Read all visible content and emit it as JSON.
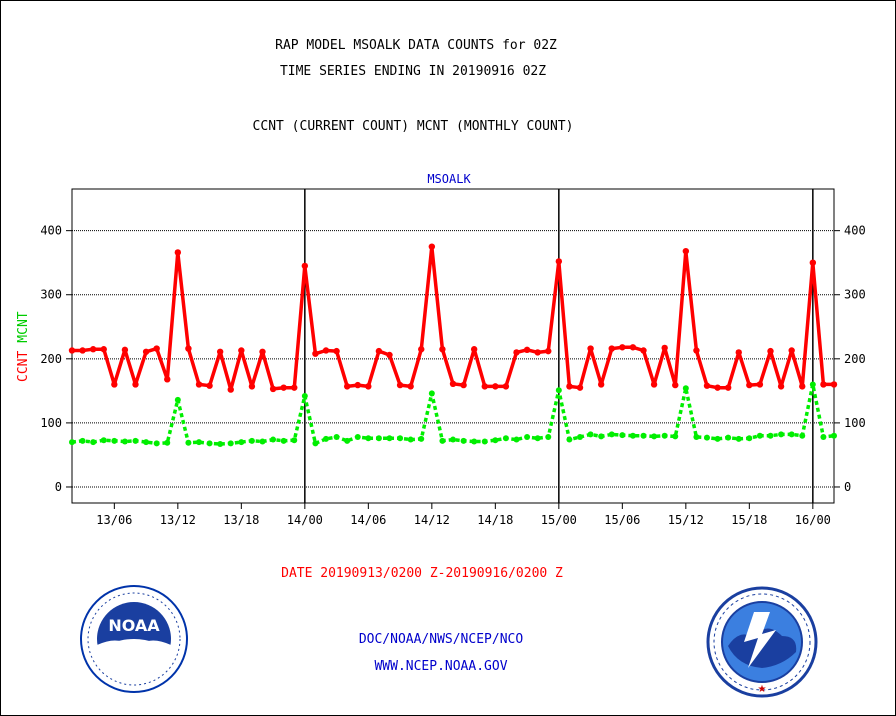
{
  "titles": {
    "line1": "RAP MODEL MSOALK DATA COUNTS for 02Z",
    "line2": "TIME SERIES ENDING IN 20190916 02Z",
    "line3": "CCNT (CURRENT COUNT) MCNT (MONTHLY COUNT)"
  },
  "panel_label": "MSOALK",
  "y_axis_labels": {
    "ccnt": "CCNT",
    "mcnt": "MCNT"
  },
  "date_range": "DATE 20190913/0200 Z-20190916/0200 Z",
  "credits": {
    "line1": "DOC/NOAA/NWS/NCEP/NCO",
    "line2": "WWW.NCEP.NOAA.GOV"
  },
  "colors": {
    "ccnt": "#ff0000",
    "mcnt": "#00ee00",
    "text_blue": "#0000cc"
  },
  "logos": {
    "left": "noaa-logo",
    "right": "nws-logo"
  },
  "chart_data": {
    "type": "line",
    "title": "MSOALK",
    "ylim": [
      -25,
      465
    ],
    "yticks": [
      0,
      100,
      200,
      300,
      400
    ],
    "grid": "horizontal dotted at y ticks",
    "x_labels": [
      "13/06",
      "13/12",
      "13/18",
      "14/00",
      "14/06",
      "14/12",
      "14/18",
      "15/00",
      "15/06",
      "15/12",
      "15/18",
      "16/00"
    ],
    "x_label_hours": [
      4,
      10,
      16,
      22,
      28,
      34,
      40,
      46,
      52,
      58,
      64,
      70
    ],
    "day_boundaries_hours": [
      22,
      46,
      70
    ],
    "x_hours": [
      0,
      1,
      2,
      3,
      4,
      5,
      6,
      7,
      8,
      9,
      10,
      11,
      12,
      13,
      14,
      15,
      16,
      17,
      18,
      19,
      20,
      21,
      22,
      23,
      24,
      25,
      26,
      27,
      28,
      29,
      30,
      31,
      32,
      33,
      34,
      35,
      36,
      37,
      38,
      39,
      40,
      41,
      42,
      43,
      44,
      45,
      46,
      47,
      48,
      49,
      50,
      51,
      52,
      53,
      54,
      55,
      56,
      57,
      58,
      59,
      60,
      61,
      62,
      63,
      64,
      65,
      66,
      67,
      68,
      69,
      70,
      71,
      72
    ],
    "series": [
      {
        "name": "CCNT",
        "values": [
          213,
          213,
          215,
          215,
          160,
          214,
          160,
          211,
          216,
          168,
          366,
          216,
          160,
          158,
          211,
          152,
          213,
          157,
          211,
          153,
          155,
          155,
          345,
          208,
          213,
          212,
          157,
          159,
          157,
          212,
          206,
          159,
          157,
          215,
          375,
          215,
          161,
          159,
          215,
          157,
          157,
          157,
          210,
          214,
          210,
          212,
          352,
          157,
          155,
          216,
          160,
          216,
          218,
          218,
          213,
          160,
          217,
          159,
          368,
          213,
          158,
          155,
          155,
          210,
          159,
          160,
          212,
          157,
          213,
          157,
          350,
          160,
          160
        ]
      },
      {
        "name": "MCNT",
        "values": [
          70,
          72,
          70,
          73,
          72,
          71,
          72,
          70,
          68,
          69,
          136,
          69,
          70,
          68,
          67,
          68,
          70,
          72,
          71,
          74,
          72,
          73,
          142,
          68,
          75,
          78,
          72,
          78,
          76,
          76,
          76,
          76,
          74,
          75,
          146,
          72,
          74,
          72,
          71,
          71,
          73,
          76,
          74,
          78,
          76,
          78,
          151,
          74,
          78,
          82,
          79,
          82,
          81,
          80,
          80,
          79,
          80,
          79,
          154,
          78,
          77,
          75,
          77,
          75,
          76,
          80,
          80,
          82,
          82,
          80,
          160,
          78,
          80
        ]
      }
    ]
  }
}
